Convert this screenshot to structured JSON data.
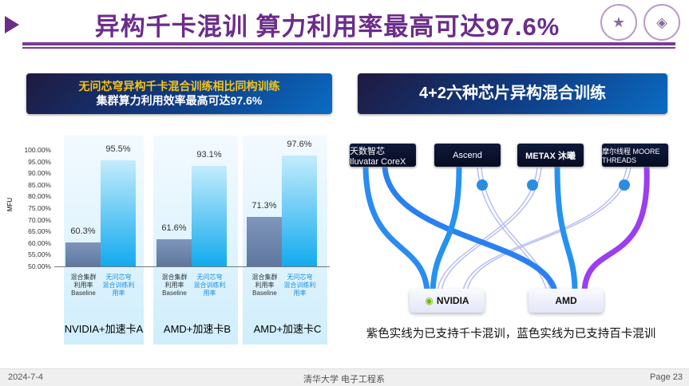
{
  "header": {
    "title": "异构千卡混训 算力利用率最高可达97.6%"
  },
  "left_box": {
    "line1": "无问芯穹异构千卡混合训练相比同构训练",
    "line2": "集群算力利用效率最高可达97.6%"
  },
  "right_box": {
    "title": "4+2六种芯片异构混合训练"
  },
  "chart_data": {
    "type": "bar",
    "ylabel": "MFU",
    "ylim": [
      50,
      100
    ],
    "yticks": [
      "100.00%",
      "95.00%",
      "90.00%",
      "85.00%",
      "80.00%",
      "75.00%",
      "70.00%",
      "65.00%",
      "60.00%",
      "55.00%",
      "50.00%"
    ],
    "groups": [
      "NVIDIA+加速卡A",
      "AMD+加速卡B",
      "AMD+加速卡C"
    ],
    "series": [
      {
        "name": "混合集群利用率Baseline",
        "label_lines": [
          "混合集群",
          "利用率",
          "Baseline"
        ],
        "values": [
          60.3,
          61.6,
          71.3
        ],
        "labels": [
          "60.3%",
          "61.6%",
          "71.3%"
        ],
        "color": "#6f86ad"
      },
      {
        "name": "无问芯穹混合训练利用率",
        "label_lines": [
          "无问芯穹",
          "混合训练利",
          "用率"
        ],
        "values": [
          95.5,
          93.1,
          97.6
        ],
        "labels": [
          "95.5%",
          "93.1%",
          "97.6%"
        ],
        "color": "#19b0ef"
      }
    ]
  },
  "diagram": {
    "chips": [
      "天数智芯 Iluvatar CoreX",
      "Ascend",
      "METAX 沐曦",
      "摩尔线程 MOORE THREADS"
    ],
    "hosts": [
      "NVIDIA",
      "AMD"
    ],
    "caption": "紫色实线为已支持千卡混训，蓝色实线为已支持百卡混训",
    "colors": {
      "blue": "#1e8ff0",
      "purple": "#9b3df0"
    }
  },
  "footer": {
    "date": "2024-7-4",
    "org": "清华大学 电子工程系",
    "page": "Page 23"
  }
}
